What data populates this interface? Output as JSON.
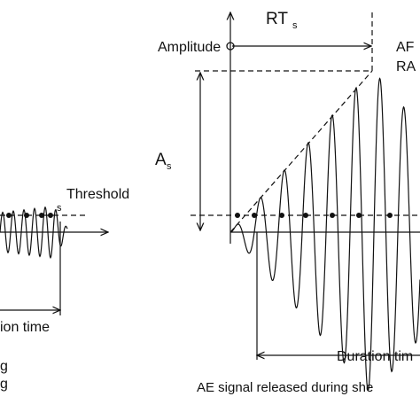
{
  "left_panel": {
    "threshold_label": "Threshold",
    "threshold_subscript": "s",
    "duration_label": "ion time",
    "caption_line1": "g",
    "caption_line2": "g"
  },
  "right_panel": {
    "rt_label": "RT",
    "rt_subscript": "s",
    "amplitude_label": "Amplitude",
    "af_label": "AF",
    "ra_label": "RA",
    "as_label": "A",
    "as_subscript": "s",
    "duration_label": "Duration tim",
    "caption": "AE signal released during she"
  }
}
